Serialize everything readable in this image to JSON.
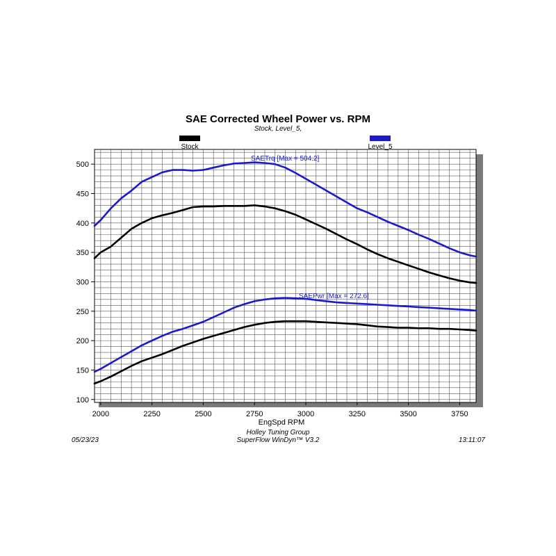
{
  "chart_data": {
    "type": "line",
    "title": "SAE Corrected Wheel Power vs. RPM",
    "subtitle": "Stock, Level_5,",
    "xlabel": "EngSpd RPM",
    "ylabel": "",
    "xlim": [
      1970,
      3830
    ],
    "ylim": [
      95,
      525
    ],
    "xticks": [
      2000,
      2250,
      2500,
      2750,
      3000,
      3250,
      3500,
      3750
    ],
    "yticks": [
      100,
      150,
      200,
      250,
      300,
      350,
      400,
      450,
      500
    ],
    "grid": true,
    "legend": {
      "placement": "top",
      "entries": [
        {
          "name": "Stock",
          "color": "#000000"
        },
        {
          "name": "Level_5",
          "color": "#1a1acc"
        }
      ]
    },
    "annotations": [
      {
        "text": "SAETrq [Max = 504.2]",
        "series": "Level_5 SAETrq"
      },
      {
        "text": "SAEPwr [Max = 272.6]",
        "series": "Level_5 SAEPwr"
      }
    ],
    "x": [
      1970,
      2000,
      2050,
      2100,
      2150,
      2200,
      2250,
      2300,
      2350,
      2400,
      2450,
      2500,
      2550,
      2600,
      2650,
      2700,
      2750,
      2800,
      2850,
      2900,
      2950,
      3000,
      3050,
      3100,
      3150,
      3200,
      3250,
      3300,
      3350,
      3400,
      3450,
      3500,
      3550,
      3600,
      3650,
      3700,
      3750,
      3800,
      3830
    ],
    "series": [
      {
        "name": "Level_5 SAETrq",
        "color": "#1a1acc",
        "values": [
          395,
          405,
          425,
          442,
          455,
          470,
          478,
          486,
          490,
          490,
          489,
          490,
          494,
          498,
          501,
          502,
          503,
          502,
          500,
          494,
          485,
          475,
          465,
          455,
          445,
          435,
          425,
          418,
          410,
          402,
          395,
          388,
          380,
          373,
          365,
          357,
          350,
          345,
          343
        ]
      },
      {
        "name": "Stock SAETrq",
        "color": "#000000",
        "values": [
          340,
          350,
          360,
          375,
          390,
          400,
          408,
          413,
          417,
          422,
          427,
          428,
          428,
          429,
          429,
          429,
          430,
          428,
          425,
          420,
          414,
          406,
          398,
          390,
          381,
          372,
          364,
          355,
          347,
          340,
          334,
          328,
          322,
          316,
          311,
          306,
          302,
          299,
          298
        ]
      },
      {
        "name": "Level_5 SAEPwr",
        "color": "#1a1acc",
        "values": [
          147,
          152,
          162,
          172,
          182,
          192,
          200,
          208,
          215,
          220,
          226,
          232,
          240,
          248,
          256,
          262,
          267,
          270,
          272,
          272.6,
          272,
          271,
          269,
          267,
          265,
          264,
          263,
          262,
          261,
          260,
          259,
          258,
          257,
          256,
          255,
          254,
          253,
          252,
          251
        ]
      },
      {
        "name": "Stock SAEPwr",
        "color": "#000000",
        "values": [
          127,
          131,
          139,
          148,
          157,
          165,
          171,
          177,
          184,
          191,
          197,
          203,
          208,
          213,
          218,
          223,
          227,
          230,
          232,
          233,
          233,
          233,
          232,
          231,
          230,
          229,
          228,
          226,
          224,
          223,
          222,
          222,
          221,
          221,
          220,
          220,
          219,
          218,
          217
        ]
      }
    ]
  },
  "footer": {
    "date": "05/23/23",
    "company": "Holley Tuning Group",
    "software": "SuperFlow WinDyn™ V3.2",
    "time": "13:11:07"
  }
}
